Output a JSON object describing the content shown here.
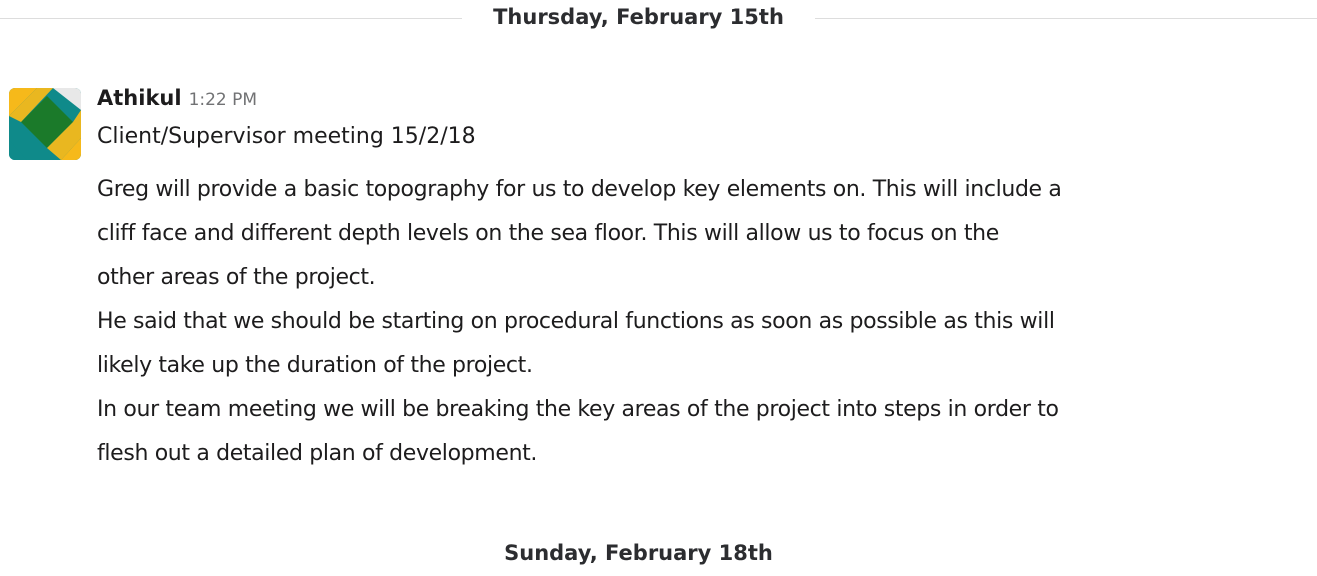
{
  "divider": {
    "date_label": "Thursday, February 15th"
  },
  "message": {
    "avatar": {
      "icon": "avatar-image",
      "colors": [
        "#f6b91a",
        "#0f8a8a",
        "#1b7a2a",
        "#e8e8e8"
      ]
    },
    "author": "Athikul",
    "time": "1:22 PM",
    "title": "Client/Supervisor meeting 15/2/18",
    "lines": [
      "Greg will provide a basic topography for us to develop key elements on. This will include a",
      "cliff face and different depth levels on the sea floor. This will allow us to focus on the",
      "other areas of the project.",
      "He said that we should be starting on procedural functions as soon as possible as this will",
      "likely take up the duration of the project.",
      "In our team meeting we will be breaking the key areas of the project into steps in order to",
      "flesh out a detailed plan of development."
    ]
  },
  "next_divider": {
    "date_label": "Sunday, February 18th"
  }
}
